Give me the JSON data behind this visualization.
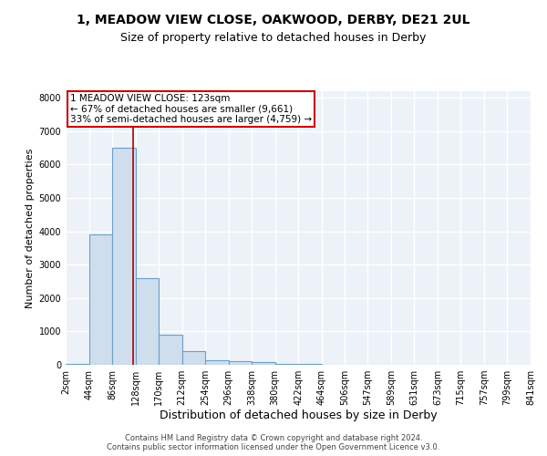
{
  "title1": "1, MEADOW VIEW CLOSE, OAKWOOD, DERBY, DE21 2UL",
  "title2": "Size of property relative to detached houses in Derby",
  "xlabel": "Distribution of detached houses by size in Derby",
  "ylabel": "Number of detached properties",
  "footer": "Contains HM Land Registry data © Crown copyright and database right 2024.\nContains public sector information licensed under the Open Government Licence v3.0.",
  "bin_edges": [
    2,
    44,
    86,
    128,
    170,
    212,
    254,
    296,
    338,
    380,
    422,
    464,
    506,
    547,
    589,
    631,
    673,
    715,
    757,
    799,
    841
  ],
  "bar_heights": [
    30,
    3900,
    6500,
    2600,
    900,
    420,
    140,
    100,
    70,
    30,
    15,
    10,
    5,
    3,
    2,
    1,
    0,
    0,
    0,
    0
  ],
  "bar_facecolor": "#cfdeed",
  "bar_edgecolor": "#6c9fc6",
  "bar_linewidth": 0.8,
  "vline_x": 123,
  "vline_color": "#aa0000",
  "annotation_text": "1 MEADOW VIEW CLOSE: 123sqm\n← 67% of detached houses are smaller (9,661)\n33% of semi-detached houses are larger (4,759) →",
  "annotation_box_color": "#cc0000",
  "ylim": [
    0,
    8200
  ],
  "yticks": [
    0,
    1000,
    2000,
    3000,
    4000,
    5000,
    6000,
    7000,
    8000
  ],
  "bg_color": "#edf2f9",
  "grid_color": "#ffffff",
  "title1_fontsize": 10,
  "title2_fontsize": 9,
  "xlabel_fontsize": 9,
  "ylabel_fontsize": 8,
  "tick_fontsize": 7,
  "ann_fontsize": 7.5,
  "footer_fontsize": 6
}
